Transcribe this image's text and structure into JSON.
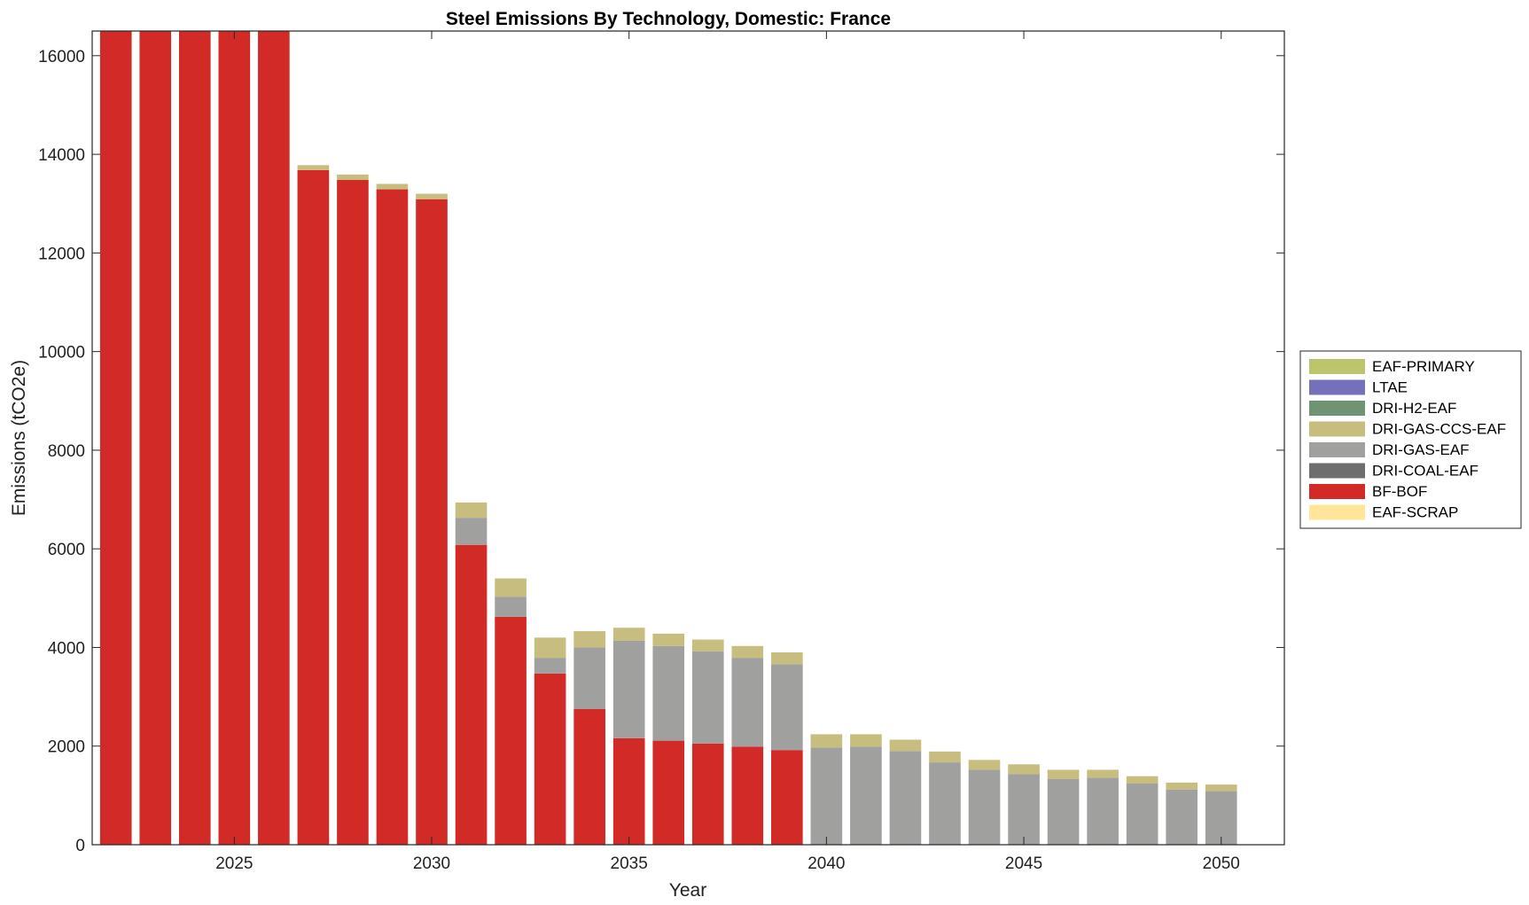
{
  "chart_data": {
    "type": "bar",
    "stacked": true,
    "title": "Steel Emissions By Technology, Domestic: France",
    "xlabel": "Year",
    "ylabel": "Emissions (tCO2e)",
    "xlim": [
      2021.4,
      2051.6
    ],
    "ylim": [
      0,
      16500
    ],
    "x_ticks": [
      2025,
      2030,
      2035,
      2040,
      2045,
      2050
    ],
    "y_ticks": [
      0,
      2000,
      4000,
      6000,
      8000,
      10000,
      12000,
      14000,
      16000
    ],
    "grid": false,
    "legend_position": "right",
    "categories": [
      2022,
      2023,
      2024,
      2025,
      2026,
      2027,
      2028,
      2029,
      2030,
      2031,
      2032,
      2033,
      2034,
      2035,
      2036,
      2037,
      2038,
      2039,
      2040,
      2041,
      2042,
      2043,
      2044,
      2045,
      2046,
      2047,
      2048,
      2049,
      2050
    ],
    "series": [
      {
        "name": "EAF-SCRAP",
        "color": "#FFE699",
        "values": [
          0,
          0,
          0,
          0,
          0,
          0,
          0,
          0,
          0,
          0,
          0,
          0,
          0,
          0,
          0,
          0,
          0,
          0,
          0,
          0,
          0,
          0,
          0,
          0,
          0,
          0,
          0,
          0,
          0
        ]
      },
      {
        "name": "BF-BOF",
        "color": "#D22B27",
        "values": [
          16500,
          16500,
          16500,
          16500,
          16500,
          13680,
          13480,
          13290,
          13090,
          6080,
          4620,
          3470,
          2750,
          2160,
          2110,
          2050,
          1990,
          1920,
          0,
          0,
          0,
          0,
          0,
          0,
          0,
          0,
          0,
          0,
          0
        ]
      },
      {
        "name": "DRI-COAL-EAF",
        "color": "#6E6E6E",
        "values": [
          0,
          0,
          0,
          0,
          0,
          0,
          0,
          0,
          0,
          0,
          0,
          0,
          0,
          0,
          0,
          0,
          0,
          0,
          0,
          0,
          0,
          0,
          0,
          0,
          0,
          0,
          0,
          0,
          0
        ]
      },
      {
        "name": "DRI-GAS-EAF",
        "color": "#A0A09F",
        "values": [
          0,
          0,
          0,
          0,
          0,
          0,
          0,
          0,
          0,
          550,
          410,
          320,
          1250,
          1980,
          1920,
          1870,
          1800,
          1740,
          1970,
          1990,
          1900,
          1670,
          1520,
          1430,
          1330,
          1360,
          1240,
          1120,
          1090
        ]
      },
      {
        "name": "DRI-GAS-CCS-EAF",
        "color": "#C7BD7E",
        "values": [
          0,
          0,
          0,
          0,
          0,
          100,
          110,
          110,
          110,
          310,
          370,
          410,
          330,
          260,
          250,
          240,
          240,
          240,
          270,
          250,
          230,
          220,
          200,
          200,
          190,
          160,
          150,
          140,
          130
        ]
      },
      {
        "name": "DRI-H2-EAF",
        "color": "#6F9373",
        "values": [
          0,
          0,
          0,
          0,
          0,
          0,
          0,
          0,
          0,
          0,
          0,
          0,
          0,
          0,
          0,
          0,
          0,
          0,
          0,
          0,
          0,
          0,
          0,
          0,
          0,
          0,
          0,
          0,
          0
        ]
      },
      {
        "name": "LTAE",
        "color": "#7570BC",
        "values": [
          0,
          0,
          0,
          0,
          0,
          0,
          0,
          0,
          0,
          0,
          0,
          0,
          0,
          0,
          0,
          0,
          0,
          0,
          0,
          0,
          0,
          0,
          0,
          0,
          0,
          0,
          0,
          0,
          0
        ]
      },
      {
        "name": "EAF-PRIMARY",
        "color": "#BCC56C",
        "values": [
          0,
          0,
          0,
          0,
          0,
          0,
          0,
          0,
          0,
          0,
          0,
          0,
          0,
          0,
          0,
          0,
          0,
          0,
          0,
          0,
          0,
          0,
          0,
          0,
          0,
          0,
          0,
          0,
          0
        ]
      }
    ],
    "legend_order": [
      "EAF-PRIMARY",
      "LTAE",
      "DRI-H2-EAF",
      "DRI-GAS-CCS-EAF",
      "DRI-GAS-EAF",
      "DRI-COAL-EAF",
      "BF-BOF",
      "EAF-SCRAP"
    ]
  }
}
